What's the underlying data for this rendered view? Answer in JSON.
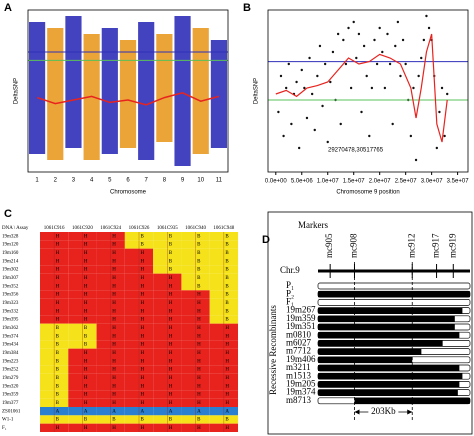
{
  "chart_data": [
    {
      "type": "band",
      "label": "A",
      "xlabel": "Chromosome",
      "ylabel": "DeltaSNP",
      "categories": [
        "1",
        "2",
        "3",
        "4",
        "5",
        "6",
        "7",
        "8",
        "9",
        "10",
        "11"
      ],
      "colors": [
        "#2f2fb8",
        "#e89a22"
      ],
      "ranges": [
        [
          -0.45,
          0.65
        ],
        [
          -0.5,
          0.6
        ],
        [
          -0.4,
          0.7
        ],
        [
          -0.5,
          0.55
        ],
        [
          -0.45,
          0.6
        ],
        [
          -0.4,
          0.5
        ],
        [
          -0.5,
          0.65
        ],
        [
          -0.35,
          0.55
        ],
        [
          -0.55,
          0.7
        ],
        [
          -0.45,
          0.6
        ],
        [
          -0.4,
          0.5
        ]
      ],
      "trend": [
        0.02,
        -0.03,
        0.0,
        0.03,
        -0.02,
        0.0,
        -0.04,
        0.02,
        0.06,
        -0.01,
        0.03
      ],
      "trend_color": "#e8231e",
      "thresholds": [
        {
          "value": 0.4,
          "color": "#2f2fb8"
        },
        {
          "value": 0.33,
          "color": "#5ac05a"
        }
      ],
      "ylim": [
        -0.6,
        0.75
      ]
    },
    {
      "type": "scatter",
      "label": "B",
      "xlabel": "Chromosome 9 position",
      "ylabel": "DeltaSNP",
      "annotation": "29270478,30517765",
      "color": "#111111",
      "x": [
        500000.0,
        1000000.0,
        1500000.0,
        2000000.0,
        2500000.0,
        3000000.0,
        3500000.0,
        4000000.0,
        4500000.0,
        5000000.0,
        5500000.0,
        6000000.0,
        6500000.0,
        7000000.0,
        7500000.0,
        8000000.0,
        8500000.0,
        9000000.0,
        9500000.0,
        10000000.0,
        10500000.0,
        11000000.0,
        11500000.0,
        12000000.0,
        12500000.0,
        13000000.0,
        13500000.0,
        14000000.0,
        14500000.0,
        15000000.0,
        15500000.0,
        16000000.0,
        16500000.0,
        17000000.0,
        17500000.0,
        18000000.0,
        18500000.0,
        19000000.0,
        19500000.0,
        20000000.0,
        20500000.0,
        21000000.0,
        21500000.0,
        22000000.0,
        22500000.0,
        23000000.0,
        23500000.0,
        24000000.0,
        24500000.0,
        25000000.0,
        25500000.0,
        26000000.0,
        26500000.0,
        27000000.0,
        27500000.0,
        28000000.0,
        28500000.0,
        29000000.0,
        29500000.0,
        30000000.0,
        30500000.0,
        31000000.0,
        31500000.0,
        32000000.0,
        32500000.0,
        33000000.0
      ],
      "y": [
        -0.1,
        0.2,
        -0.3,
        0.1,
        0.3,
        -0.2,
        0.05,
        0.15,
        -0.4,
        0.25,
        0.1,
        -0.15,
        0.35,
        0.05,
        -0.25,
        0.2,
        0.45,
        -0.05,
        0.3,
        -0.35,
        0.15,
        0.4,
        0.0,
        0.55,
        -0.2,
        0.5,
        0.3,
        0.6,
        0.1,
        0.65,
        0.35,
        0.55,
        -0.1,
        0.45,
        0.2,
        -0.3,
        0.1,
        0.5,
        0.3,
        0.6,
        0.4,
        0.1,
        0.55,
        0.3,
        -0.2,
        0.45,
        0.65,
        0.2,
        0.5,
        0.3,
        0.0,
        -0.3,
        0.1,
        -0.5,
        0.2,
        0.35,
        0.5,
        0.7,
        0.6,
        0.5,
        0.2,
        -0.4,
        -0.1,
        0.1,
        -0.3,
        0.05
      ],
      "trend_x": [
        0,
        2000000.0,
        4000000.0,
        6000000.0,
        8000000.0,
        10000000.0,
        12000000.0,
        14000000.0,
        16000000.0,
        18000000.0,
        20000000.0,
        22000000.0,
        24000000.0,
        26000000.0,
        27000000.0,
        28000000.0,
        29000000.0,
        30000000.0,
        31000000.0,
        32000000.0,
        33000000.0
      ],
      "trend_y": [
        0.05,
        0.08,
        0.03,
        0.1,
        0.12,
        0.15,
        0.25,
        0.35,
        0.3,
        0.32,
        0.38,
        0.35,
        0.3,
        0.1,
        -0.15,
        0.1,
        0.4,
        0.55,
        -0.2,
        -0.35,
        0.0
      ],
      "trend_color": "#e8231e",
      "thresholds": [
        {
          "value": 0.32,
          "color": "#2f2fb8"
        },
        {
          "value": 0.0,
          "color": "#5ac05a"
        }
      ],
      "xlim": [
        -1500000.0,
        37000000.0
      ],
      "xticks": [
        {
          "value": 0,
          "label": "0.0e+00"
        },
        {
          "value": 5000000.0,
          "label": "5.0e+06"
        },
        {
          "value": 10000000.0,
          "label": "1.0e+07"
        },
        {
          "value": 15000000.0,
          "label": "1.5e+07"
        },
        {
          "value": 20000000.0,
          "label": "2.0e+07"
        },
        {
          "value": 25000000.0,
          "label": "2.5e+07"
        },
        {
          "value": 30000000.0,
          "label": "3.0e+07"
        },
        {
          "value": 35000000.0,
          "label": "3.5e+07"
        }
      ],
      "ylim": [
        -0.6,
        0.75
      ]
    }
  ],
  "table": {
    "label": "C",
    "corner": "DNA \\ Assay",
    "columns": [
      "1061C916",
      "1061C920",
      "1061C924",
      "1061C926",
      "1061C935",
      "1061C940",
      "1061C948"
    ],
    "colors": {
      "H": "#e8231e",
      "B": "#f5e21a",
      "A": "#2a7fd0"
    },
    "rows": [
      {
        "name": "19m328",
        "cells": [
          "H",
          "H",
          "H",
          "B",
          "B",
          "B",
          "B"
        ]
      },
      {
        "name": "19m120",
        "cells": [
          "H",
          "H",
          "H",
          "B",
          "B",
          "B",
          "B"
        ]
      },
      {
        "name": "19m160",
        "cells": [
          "H",
          "H",
          "H",
          "H",
          "B",
          "B",
          "B"
        ]
      },
      {
        "name": "19m214",
        "cells": [
          "H",
          "H",
          "H",
          "H",
          "B",
          "B",
          "B"
        ]
      },
      {
        "name": "19m302",
        "cells": [
          "H",
          "H",
          "H",
          "H",
          "B",
          "B",
          "B"
        ]
      },
      {
        "name": "19m307",
        "cells": [
          "H",
          "H",
          "H",
          "H",
          "H",
          "B",
          "B"
        ]
      },
      {
        "name": "19m352",
        "cells": [
          "H",
          "H",
          "H",
          "H",
          "H",
          "B",
          "B"
        ]
      },
      {
        "name": "19m356",
        "cells": [
          "H",
          "H",
          "H",
          "H",
          "H",
          "H",
          "B"
        ]
      },
      {
        "name": "19m323",
        "cells": [
          "H",
          "H",
          "H",
          "H",
          "H",
          "H",
          "B"
        ]
      },
      {
        "name": "19m332",
        "cells": [
          "H",
          "H",
          "H",
          "H",
          "H",
          "H",
          "B"
        ]
      },
      {
        "name": "19m395",
        "cells": [
          "H",
          "H",
          "H",
          "H",
          "H",
          "H",
          "B"
        ]
      },
      {
        "name": "19m362",
        "cells": [
          "B",
          "B",
          "H",
          "H",
          "H",
          "H",
          "H"
        ]
      },
      {
        "name": "19m374",
        "cells": [
          "B",
          "B",
          "H",
          "H",
          "H",
          "H",
          "H"
        ]
      },
      {
        "name": "19m434",
        "cells": [
          "B",
          "B",
          "H",
          "H",
          "H",
          "H",
          "H"
        ]
      },
      {
        "name": "19m384",
        "cells": [
          "B",
          "H",
          "H",
          "H",
          "H",
          "H",
          "H"
        ]
      },
      {
        "name": "19m223",
        "cells": [
          "B",
          "H",
          "H",
          "H",
          "H",
          "H",
          "H"
        ]
      },
      {
        "name": "19m252",
        "cells": [
          "B",
          "H",
          "H",
          "H",
          "H",
          "H",
          "H"
        ]
      },
      {
        "name": "19m279",
        "cells": [
          "B",
          "H",
          "H",
          "H",
          "H",
          "H",
          "H"
        ]
      },
      {
        "name": "19m320",
        "cells": [
          "B",
          "H",
          "H",
          "H",
          "H",
          "H",
          "H"
        ]
      },
      {
        "name": "19m359",
        "cells": [
          "B",
          "H",
          "H",
          "H",
          "H",
          "H",
          "H"
        ]
      },
      {
        "name": "19m377",
        "cells": [
          "B",
          "H",
          "H",
          "H",
          "H",
          "H",
          "H"
        ]
      },
      {
        "name": "ZS01061",
        "cells": [
          "A",
          "A",
          "A",
          "A",
          "A",
          "A",
          "A"
        ]
      },
      {
        "name": "W1-1",
        "cells": [
          "B",
          "B",
          "B",
          "B",
          "B",
          "B",
          "B"
        ]
      },
      {
        "name": "F₁",
        "cells": [
          "H",
          "H",
          "H",
          "H",
          "H",
          "H",
          "H"
        ]
      }
    ]
  },
  "diagram": {
    "label": "D",
    "markers_title": "Markers",
    "chromosome": "Chr.9",
    "group_label": "Recessive Recombinants",
    "interval": "203Kb",
    "markers": [
      {
        "name": "mc905",
        "pos": 0.08
      },
      {
        "name": "mc908",
        "pos": 0.24
      },
      {
        "name": "mc912",
        "pos": 0.62
      },
      {
        "name": "mc917",
        "pos": 0.78
      },
      {
        "name": "mc919",
        "pos": 0.89
      }
    ],
    "lines": [
      {
        "name": "P₁",
        "black": []
      },
      {
        "name": "P₂",
        "black": [
          [
            0,
            1
          ]
        ]
      },
      {
        "name": "F₁",
        "black": []
      },
      {
        "name": "19m267",
        "black": [
          [
            0,
            0.95
          ]
        ]
      },
      {
        "name": "19m359",
        "black": [
          [
            0,
            0.9
          ]
        ]
      },
      {
        "name": "19m351",
        "black": [
          [
            0,
            0.9
          ]
        ]
      },
      {
        "name": "m0810",
        "black": [
          [
            0,
            0.93
          ]
        ]
      },
      {
        "name": "m6027",
        "black": [
          [
            0,
            0.82
          ]
        ]
      },
      {
        "name": "m7712",
        "black": [
          [
            0,
            0.68
          ]
        ]
      },
      {
        "name": "19m406",
        "black": [
          [
            0,
            0.62
          ]
        ]
      },
      {
        "name": "m3211",
        "black": [
          [
            0,
            0.93
          ]
        ]
      },
      {
        "name": "m1513",
        "black": [
          [
            0,
            0.95
          ]
        ]
      },
      {
        "name": "19m205",
        "black": [
          [
            0,
            0.93
          ]
        ]
      },
      {
        "name": "19m374",
        "black": [
          [
            0,
            0.92
          ]
        ]
      },
      {
        "name": "m8713",
        "black": [
          [
            0.24,
            1
          ]
        ]
      }
    ]
  }
}
